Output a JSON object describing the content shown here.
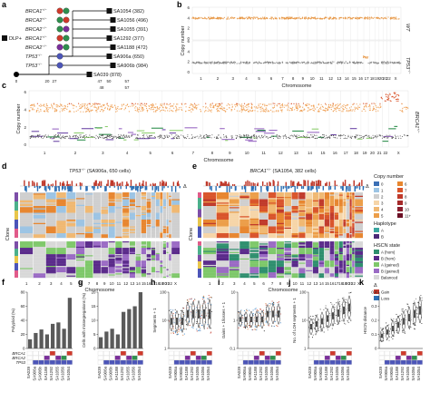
{
  "panel_letters": [
    "a",
    "b",
    "c",
    "d",
    "e",
    "f",
    "g",
    "h",
    "i",
    "j",
    "k"
  ],
  "panel_a": {
    "clones": [
      {
        "genotype": "BRCA1",
        "sup": "+/−",
        "sample": "SA1054 (382)"
      },
      {
        "genotype": "BRCA2",
        "sup": "+/−",
        "sample": "SA1056 (496)"
      },
      {
        "genotype": "BRCA2",
        "sup": "−/−",
        "sample": "SA1055 (391)"
      },
      {
        "genotype": "BRCA1",
        "sup": "+/−",
        "sample": "SA1292 (377)"
      },
      {
        "genotype": "BRCA2",
        "sup": "−/−",
        "sample": "SA1188 (472)"
      },
      {
        "genotype": "TP53",
        "sup": "−/−",
        "sample": "SA906a (650)"
      },
      {
        "genotype": "TP53",
        "sup": "−/−",
        "sample": "SA906b (984)"
      },
      {
        "genotype": "",
        "sup": "",
        "sample": "SA039 (878)"
      }
    ],
    "dlp_label": "DLP+",
    "passage_ticks": [
      "0",
      "20",
      "27",
      "47",
      "50",
      "57",
      "48",
      "57"
    ],
    "xlabel": "Passage"
  },
  "panel_b": {
    "rows": [
      {
        "label": "WT",
        "sub": "",
        "yticks": [
          "6",
          "4",
          "2",
          "0"
        ]
      },
      {
        "label": "TP53",
        "sub": "−/−",
        "yticks": [
          "6",
          "4",
          "2",
          "0"
        ]
      }
    ],
    "ylabel": "Copy number",
    "xlabel": "Chromosome",
    "chrom_ticks": [
      "1",
      "2",
      "3",
      "4",
      "5",
      "6",
      "7",
      "8",
      "9",
      "10",
      "11",
      "12",
      "13",
      "14",
      "15",
      "16",
      "17",
      "18",
      "19",
      "20",
      "21",
      "22",
      "X"
    ]
  },
  "panel_c": {
    "row_label": "BRCA1",
    "row_sup": "+/−",
    "ylabel": "Copy number",
    "yticks": [
      "6",
      "4",
      "2",
      "0"
    ],
    "xlabel": "Chromosome",
    "chrom_ticks": [
      "1",
      "2",
      "3",
      "4",
      "5",
      "6",
      "7",
      "8",
      "9",
      "10",
      "11",
      "12",
      "13",
      "14",
      "15",
      "16",
      "17",
      "18",
      "19",
      "20",
      "21",
      "22",
      "X"
    ]
  },
  "panel_d": {
    "title": "TP53",
    "title_sup": "−/−",
    "subtitle": " (SA906a, 650 cells)",
    "xlabel": "Chromosome",
    "ylabel": "Clone",
    "delta": "Δ",
    "chrom_ticks": [
      "1",
      "2",
      "3",
      "4",
      "5",
      "6",
      "7",
      "8",
      "9",
      "10",
      "11",
      "12",
      "13",
      "14",
      "15",
      "16",
      "17",
      "18",
      "19",
      "20",
      "21",
      "22",
      "X"
    ]
  },
  "panel_e": {
    "title": "BRCA1",
    "title_sup": "+/−",
    "subtitle": " (SA1054, 382 cells)",
    "xlabel": "Chromosome",
    "ylabel": "Clone",
    "delta": "Δ",
    "chrom_ticks": [
      "1",
      "2",
      "3",
      "4",
      "5",
      "6",
      "7",
      "8",
      "9",
      "10",
      "11",
      "12",
      "13",
      "14",
      "15",
      "16",
      "17",
      "18",
      "19",
      "20",
      "21",
      "22",
      "X"
    ]
  },
  "legend": {
    "copy_number_title": "Copy number",
    "cn_items": [
      {
        "label": "0",
        "color": "#3b6fb5"
      },
      {
        "label": "6",
        "color": "#e7862f"
      },
      {
        "label": "1",
        "color": "#9cc4e4"
      },
      {
        "label": "7",
        "color": "#d9542b"
      },
      {
        "label": "2",
        "color": "#cfcfcf"
      },
      {
        "label": "8",
        "color": "#c03a2b"
      },
      {
        "label": "3",
        "color": "#f6d5a8"
      },
      {
        "label": "9",
        "color": "#a52a2a"
      },
      {
        "label": "4",
        "color": "#f0b872"
      },
      {
        "label": "10",
        "color": "#8a1e2e"
      },
      {
        "label": "5",
        "color": "#ec9e49"
      },
      {
        "label": "11+",
        "color": "#6b1025"
      }
    ],
    "haplotype_title": "Haplotype",
    "haplotype_items": [
      {
        "label": "A",
        "color": "#3aa6a0"
      },
      {
        "label": "B",
        "color": "#4b2a78"
      }
    ],
    "hscn_title": "HSCN state",
    "hscn_items": [
      {
        "label": "A (hom)",
        "color": "#2f8f6e"
      },
      {
        "label": "B (hom)",
        "color": "#5a2a8a"
      },
      {
        "label": "A (gained)",
        "color": "#7ec86a"
      },
      {
        "label": "B (gained)",
        "color": "#9a6ac4"
      },
      {
        "label": "Balanced",
        "color": "#d8d8d8"
      }
    ],
    "delta_title": "Δ",
    "delta_items": [
      {
        "label": "Gain",
        "color": "#c0392b"
      },
      {
        "label": "Loss",
        "color": "#2c6fb4"
      }
    ]
  },
  "panel_f": {
    "ylabel": "Polyploid (%)",
    "yticks": [
      "0",
      "20",
      "40",
      "60",
      "80"
    ],
    "row_labels": [
      "BRCA1",
      "BRCA2",
      "TP53"
    ],
    "samples": [
      "SA039",
      "SA906a",
      "SA906b",
      "SA1188",
      "SA1292",
      "SA1055",
      "SA1056",
      "SA1054"
    ]
  },
  "panel_g": {
    "ylabel": "Cells with missegregations (%)",
    "yticks": [
      "0",
      "5",
      "10",
      "15",
      "20"
    ],
    "samples": [
      "SA039",
      "SA906a",
      "SA906b",
      "SA1188",
      "SA1292",
      "SA1055",
      "SA1056",
      "SA1054"
    ]
  },
  "panel_h": {
    "ylabel": "Segments + 1",
    "yticks": [
      "100",
      "10",
      "1"
    ],
    "samples": [
      "SA039",
      "SA906a",
      "SA906b",
      "SA1188",
      "SA1292",
      "SA1055",
      "SA1056",
      "SA1054"
    ]
  },
  "panel_i": {
    "ylabel": "Gains + 1/losses + 1",
    "yticks": [
      "10",
      "1",
      "0.1"
    ],
    "samples": [
      "SA039",
      "SA906a",
      "SA906b",
      "SA1188",
      "SA1292",
      "SA1055",
      "SA1056",
      "SA1054"
    ]
  },
  "panel_j": {
    "ylabel": "No. of LOH segments + 1",
    "yticks": [
      "100",
      "10",
      "1"
    ],
    "samples": [
      "SA039",
      "SA906a",
      "SA906b",
      "SA1188",
      "SA1292",
      "SA1055",
      "SA1056",
      "SA1054"
    ]
  },
  "panel_k": {
    "ylabel": "HSCN distance",
    "yticks": [
      "0.4",
      "0.3",
      "0.2",
      "0.1",
      "0"
    ],
    "samples": [
      "SA039",
      "SA906a",
      "SA906b",
      "SA1188",
      "SA1292",
      "SA1055",
      "SA1056",
      "SA1054"
    ]
  },
  "chart_data": [
    {
      "type": "bar",
      "panel": "f",
      "categories": [
        "SA039",
        "SA906a",
        "SA906b",
        "SA1188",
        "SA1292",
        "SA1055",
        "SA1056",
        "SA1054"
      ],
      "values": [
        13,
        22,
        27,
        20,
        35,
        37,
        28,
        72
      ],
      "ylabel": "Polyploid (%)",
      "ylim": [
        0,
        80
      ]
    },
    {
      "type": "bar",
      "panel": "g",
      "categories": [
        "SA039",
        "SA906a",
        "SA906b",
        "SA1188",
        "SA1292",
        "SA1055",
        "SA1056",
        "SA1054"
      ],
      "values": [
        4,
        6,
        7,
        5,
        13,
        14,
        15,
        20
      ],
      "ylabel": "Cells with missegregations (%)",
      "ylim": [
        0,
        20
      ]
    }
  ]
}
